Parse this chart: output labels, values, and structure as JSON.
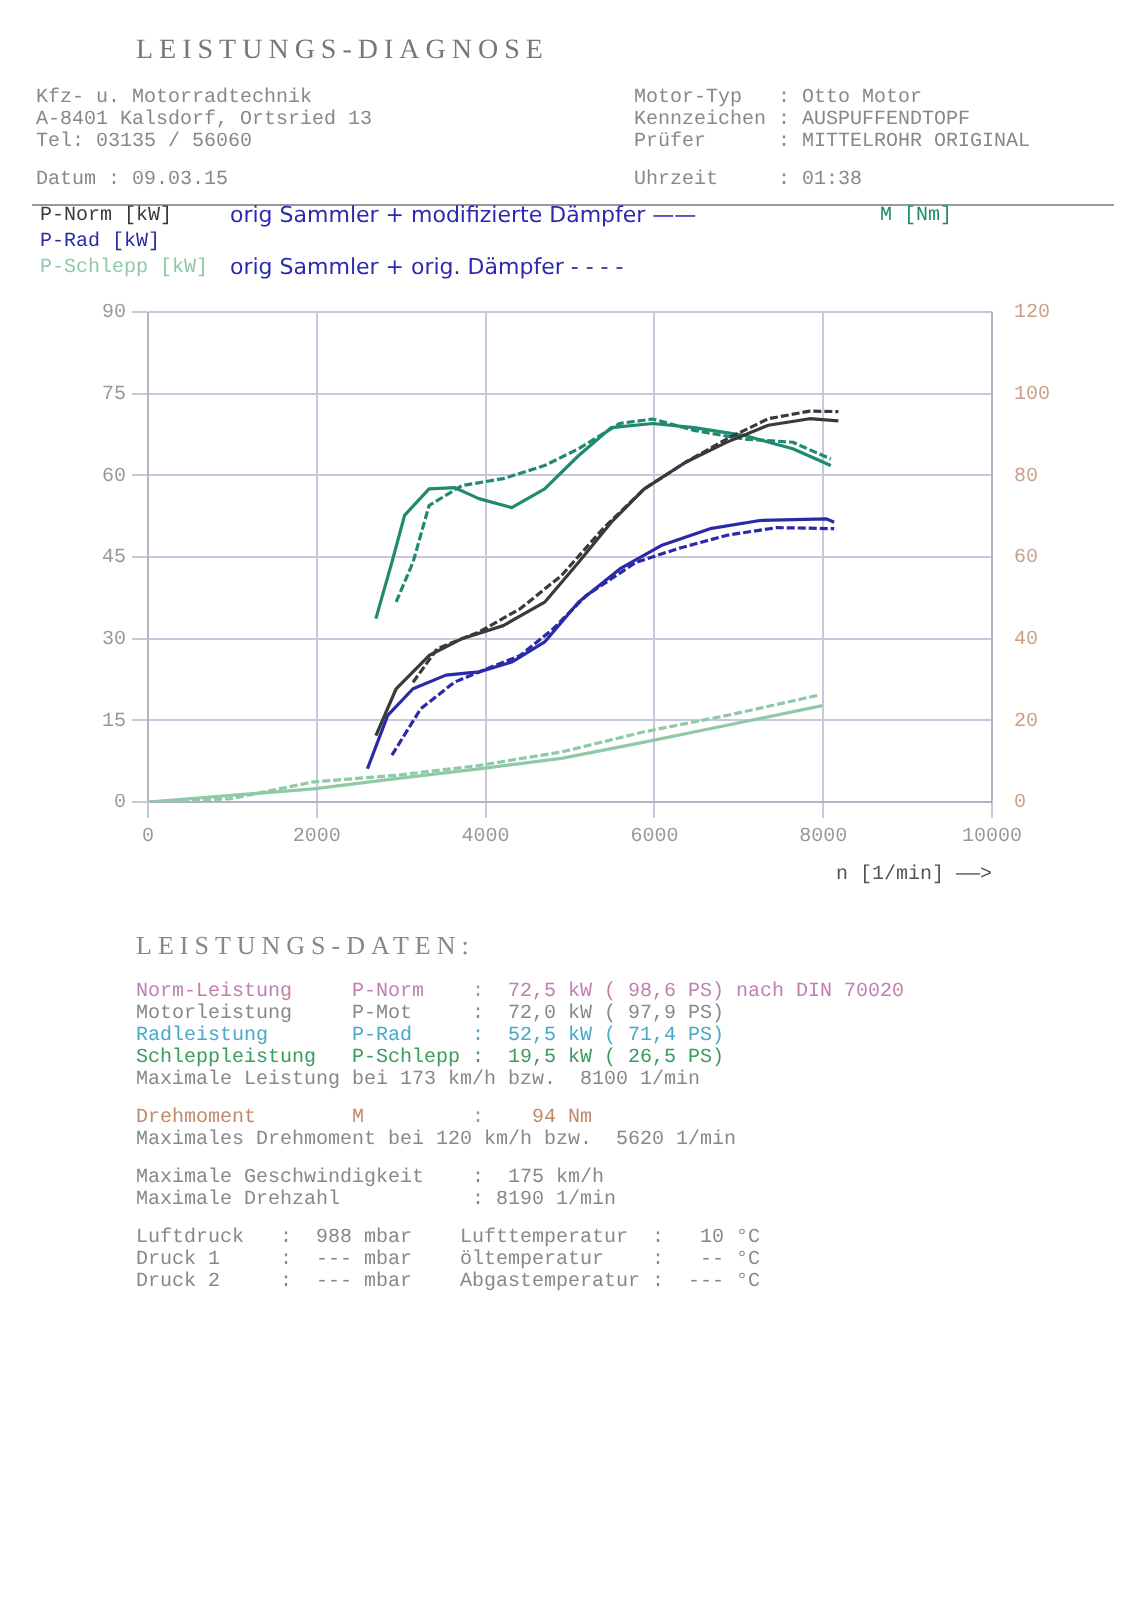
{
  "chart_data": {
    "type": "line",
    "title": "LEISTUNGS-DIAGNOSE",
    "subtitle": "LEISTUNGS-DATEN:",
    "xlabel": "n [1/min] ——>",
    "annotations": [
      "Kfz- u. Motorradtechnik",
      "A-8401 Kalsdorf, Ortsried 13",
      "Tel: 03135 / 56060",
      "Datum : 09.03.15",
      "Motor-Typ   : Otto Motor",
      "Kennzeichen : AUSPUFFENDTOPF",
      "Prüfer      : MITTELROHR ORIGINAL",
      "Uhrzeit     : 01:38",
      "orig Sammler + modifizierte Dämpfer ——",
      "orig Sammler + orig. Dämpfer - - - -",
      "Norm-Leistung     P-Norm    :  72,5 kW ( 98,6 PS) nach DIN 70020",
      "Motorleistung     P-Mot     :  72,0 kW ( 97,9 PS)",
      "Radleistung       P-Rad     :  52,5 kW ( 71,4 PS)",
      "Schleppleistung   P-Schlepp :  19,5 kW ( 26,5 PS)",
      "Maximale Leistung bei 173 km/h bzw.  8100 1/min",
      "Drehmoment        M         :    94 Nm",
      "Maximales Drehmoment bei 120 km/h bzw.  5620 1/min",
      "Maximale Geschwindigkeit    :  175 km/h",
      "Maximale Drehzahl           : 8190 1/min",
      "Luftdruck   :  988 mbar",
      "Druck 1     :  --- mbar",
      "Druck 2     :  --- mbar",
      "Lufttemperatur  :   10 °C",
      "öltemperatur    :   -- °C",
      "Abgastemperatur :  --- °C"
    ],
    "xlim": [
      0,
      10000
    ],
    "xticks": [
      0,
      2000,
      4000,
      6000,
      8000,
      10000
    ],
    "ylim": [
      0,
      90
    ],
    "yticks": [
      0,
      15,
      30,
      45,
      60,
      75,
      90
    ],
    "y2lim": [
      0,
      120
    ],
    "y2ticks": [
      0,
      20,
      40,
      60,
      80,
      100,
      120
    ],
    "grid": true,
    "legend": "top",
    "marker": "none",
    "series": [
      {
        "name": "P-Norm [kW]",
        "color": "#3a3a3a",
        "x": [
          2700,
          2940,
          3330,
          3720,
          4210,
          4700,
          5100,
          5490,
          5880,
          6370,
          6860,
          7350,
          7840,
          8180
        ],
        "values": [
          12.2,
          20.8,
          26.9,
          30,
          32.4,
          36.7,
          44,
          51.4,
          57.5,
          62.4,
          66.1,
          69.2,
          70.4,
          70
        ]
      },
      {
        "color": "#3a3a3a",
        "line_style": "dashed",
        "x": [
          3140,
          3430,
          3920,
          4410,
          4900,
          5390,
          5880,
          6370,
          6860,
          7350,
          7840,
          8180
        ],
        "values": [
          22,
          28.2,
          31.2,
          35.5,
          41.6,
          50.2,
          57.5,
          62.4,
          66.7,
          70.4,
          71.8,
          71.7
        ]
      },
      {
        "name": "P-Rad [kW]",
        "color": "#2a2aa8",
        "x": [
          2600,
          2840,
          3140,
          3530,
          3920,
          4310,
          4700,
          5100,
          5590,
          6080,
          6660,
          7250,
          8040,
          8130
        ],
        "values": [
          6.1,
          15.9,
          20.8,
          23.3,
          23.9,
          25.7,
          29.4,
          36.7,
          42.8,
          47.1,
          50.2,
          51.7,
          52,
          51.4
        ]
      },
      {
        "color": "#2a2aa8",
        "line_style": "dashed",
        "x": [
          2890,
          3230,
          3630,
          4020,
          4410,
          4800,
          5190,
          5780,
          6270,
          6860,
          7450,
          8130
        ],
        "values": [
          8.6,
          17.1,
          22,
          24.5,
          26.9,
          31.8,
          37.9,
          44,
          46.5,
          49,
          50.4,
          50.2
        ]
      },
      {
        "name": "P-Schlepp [kW]",
        "color": "#8fc9a8",
        "x": [
          0,
          1960,
          2940,
          3920,
          4900,
          5880,
          6860,
          7990
        ],
        "values": [
          0,
          2.4,
          4.3,
          6.1,
          8,
          11,
          14.1,
          17.7
        ]
      },
      {
        "color": "#8fc9a8",
        "line_style": "dashed",
        "x": [
          0,
          980,
          1960,
          2940,
          3920,
          4900,
          5880,
          6860,
          7940
        ],
        "values": [
          0,
          0.6,
          3.7,
          4.9,
          6.7,
          9.2,
          12.9,
          15.9,
          19.6
        ]
      },
      {
        "name": "M [Nm]",
        "color": "#1f8a70",
        "axis": "y2",
        "x": [
          2700,
          2890,
          3040,
          3330,
          3630,
          3920,
          4310,
          4700,
          5100,
          5490,
          5980,
          6470,
          7060,
          7640,
          8090
        ],
        "values": [
          44.9,
          58.7,
          70.2,
          76.7,
          77,
          74.3,
          72.1,
          76.7,
          84.8,
          91.7,
          92.7,
          91.7,
          89.8,
          86.5,
          82.4
        ]
      },
      {
        "color": "#1f8a70",
        "line_style": "dashed",
        "axis": "y2",
        "x": [
          2940,
          3140,
          3330,
          3720,
          4210,
          4700,
          5100,
          5590,
          5980,
          6470,
          7060,
          7640,
          8090
        ],
        "values": [
          49,
          58.7,
          72.6,
          77.5,
          79.2,
          82.4,
          86.5,
          92.7,
          93.8,
          91,
          88.9,
          88.1,
          84
        ]
      }
    ]
  }
}
